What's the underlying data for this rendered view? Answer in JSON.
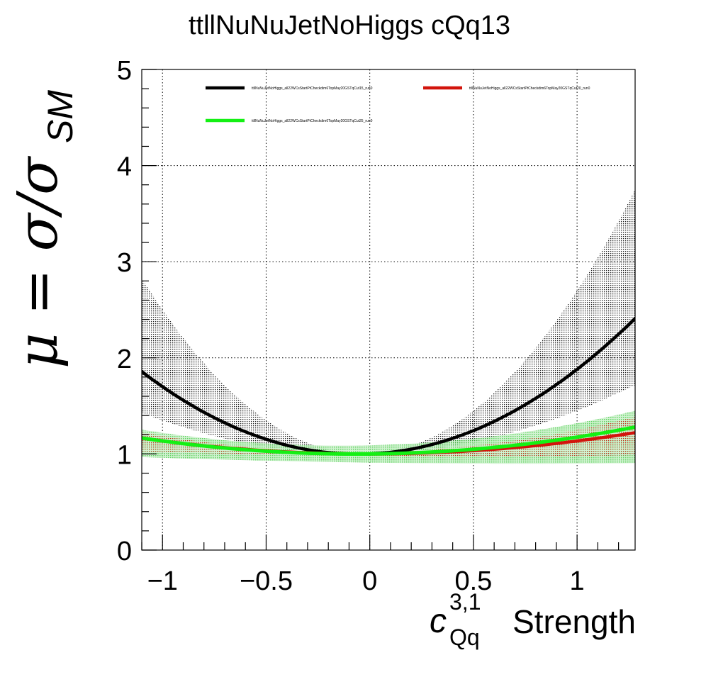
{
  "chart_data": {
    "type": "line",
    "title": "ttllNuNuJetNoHiggs cQq13",
    "xlabel": {
      "symbol": "c",
      "superscript": "3,1",
      "subscript": "Qq",
      "suffix": "Strength"
    },
    "ylabel": {
      "prefix": "μ = σ/σ",
      "subscript": "SM"
    },
    "xlim": [
      -1.1,
      1.28
    ],
    "ylim": [
      0,
      5
    ],
    "xticks": [
      -1,
      -0.5,
      0,
      0.5,
      1
    ],
    "xtick_labels": [
      "−1",
      "−0.5",
      "0",
      "0.5",
      "1"
    ],
    "yticks": [
      0,
      1,
      2,
      3,
      4,
      5
    ],
    "ytick_labels": [
      "0",
      "1",
      "2",
      "3",
      "4",
      "5"
    ],
    "grid": true,
    "legend_position": "top",
    "series": [
      {
        "name": "ttllNuNuJetNoHiggs_all22WCsStartPtCheckdim6TopMay20GSTqCut15_run0",
        "color": "#000000",
        "band_color": "#000000",
        "quad": [
          1.0,
          0.09,
          0.79
        ],
        "band_lo_quad": [
          1.0,
          0.05,
          0.4
        ],
        "band_hi_quad": [
          1.0,
          0.1,
          1.6
        ]
      },
      {
        "name": "ttllNuNuJetNoHiggs_all22WCsStartPtCheckdim6TopMay20GSTqCut20_run0",
        "color": "#d2140c",
        "band_color": "#d2140c",
        "quad": [
          1.0,
          0.0,
          0.135
        ],
        "band_lo_quad": [
          0.98,
          -0.02,
          0.02
        ],
        "band_hi_quad": [
          1.02,
          0.03,
          0.2
        ]
      },
      {
        "name": "ttllNuNuJetNoHiggs_all22WCsStartPtCheckdim6TopMay20GSTqCut25_run0",
        "color": "#14f014",
        "band_color": "#3cc83c",
        "quad": [
          1.0,
          0.02,
          0.155
        ],
        "band_lo_quad": [
          0.91,
          -0.03,
          0.02
        ],
        "band_hi_quad": [
          1.09,
          0.05,
          0.18
        ]
      }
    ],
    "curve_samples": 60
  }
}
